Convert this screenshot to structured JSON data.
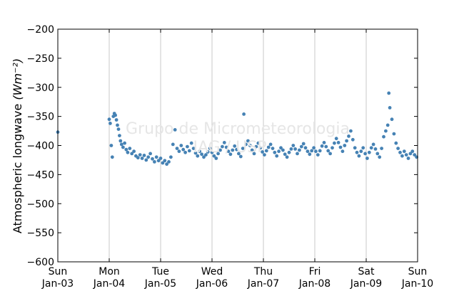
{
  "chart_data": {
    "type": "scatter",
    "title": "",
    "ylabel": "Atmospheric longwave",
    "ylabel_units": "(Wm⁻²)",
    "xlabel": "",
    "ylim": [
      -600,
      -200
    ],
    "xlim": [
      0,
      7
    ],
    "grid": "vertical",
    "yticks": [
      -200,
      -250,
      -300,
      -350,
      -400,
      -450,
      -500,
      -550,
      -600
    ],
    "xticks": [
      {
        "x": 0,
        "day": "Sun",
        "date": "Jan-03"
      },
      {
        "x": 1,
        "day": "Mon",
        "date": "Jan-04"
      },
      {
        "x": 2,
        "day": "Tue",
        "date": "Jan-05"
      },
      {
        "x": 3,
        "day": "Wed",
        "date": "Jan-06"
      },
      {
        "x": 4,
        "day": "Thu",
        "date": "Jan-07"
      },
      {
        "x": 5,
        "day": "Fri",
        "date": "Jan-08"
      },
      {
        "x": 6,
        "day": "Sat",
        "date": "Jan-09"
      },
      {
        "x": 7,
        "day": "Sun",
        "date": "Jan-10"
      }
    ],
    "color": "#4682b4",
    "points": [
      [
        0.0,
        -377
      ],
      [
        1.0,
        -355
      ],
      [
        1.02,
        -362
      ],
      [
        1.04,
        -400
      ],
      [
        1.06,
        -420
      ],
      [
        1.08,
        -350
      ],
      [
        1.1,
        -345
      ],
      [
        1.12,
        -348
      ],
      [
        1.14,
        -356
      ],
      [
        1.16,
        -365
      ],
      [
        1.18,
        -372
      ],
      [
        1.2,
        -383
      ],
      [
        1.22,
        -392
      ],
      [
        1.24,
        -398
      ],
      [
        1.27,
        -403
      ],
      [
        1.3,
        -396
      ],
      [
        1.33,
        -407
      ],
      [
        1.36,
        -412
      ],
      [
        1.4,
        -405
      ],
      [
        1.44,
        -414
      ],
      [
        1.48,
        -410
      ],
      [
        1.52,
        -418
      ],
      [
        1.56,
        -421
      ],
      [
        1.6,
        -416
      ],
      [
        1.64,
        -422
      ],
      [
        1.68,
        -417
      ],
      [
        1.72,
        -425
      ],
      [
        1.76,
        -420
      ],
      [
        1.8,
        -414
      ],
      [
        1.84,
        -423
      ],
      [
        1.88,
        -428
      ],
      [
        1.92,
        -420
      ],
      [
        1.96,
        -426
      ],
      [
        2.0,
        -422
      ],
      [
        2.04,
        -430
      ],
      [
        2.08,
        -426
      ],
      [
        2.12,
        -432
      ],
      [
        2.16,
        -428
      ],
      [
        2.2,
        -420
      ],
      [
        2.24,
        -398
      ],
      [
        2.28,
        -373
      ],
      [
        2.32,
        -405
      ],
      [
        2.36,
        -410
      ],
      [
        2.4,
        -400
      ],
      [
        2.44,
        -407
      ],
      [
        2.48,
        -412
      ],
      [
        2.52,
        -402
      ],
      [
        2.56,
        -409
      ],
      [
        2.6,
        -396
      ],
      [
        2.64,
        -405
      ],
      [
        2.68,
        -413
      ],
      [
        2.72,
        -418
      ],
      [
        2.76,
        -410
      ],
      [
        2.8,
        -415
      ],
      [
        2.84,
        -420
      ],
      [
        2.88,
        -416
      ],
      [
        2.92,
        -411
      ],
      [
        2.96,
        -405
      ],
      [
        3.0,
        -412
      ],
      [
        3.04,
        -418
      ],
      [
        3.08,
        -422
      ],
      [
        3.12,
        -414
      ],
      [
        3.16,
        -408
      ],
      [
        3.2,
        -402
      ],
      [
        3.24,
        -395
      ],
      [
        3.28,
        -403
      ],
      [
        3.32,
        -410
      ],
      [
        3.36,
        -415
      ],
      [
        3.4,
        -408
      ],
      [
        3.44,
        -401
      ],
      [
        3.48,
        -407
      ],
      [
        3.52,
        -414
      ],
      [
        3.56,
        -419
      ],
      [
        3.6,
        -405
      ],
      [
        3.62,
        -346
      ],
      [
        3.66,
        -398
      ],
      [
        3.7,
        -392
      ],
      [
        3.74,
        -400
      ],
      [
        3.78,
        -408
      ],
      [
        3.82,
        -414
      ],
      [
        3.86,
        -402
      ],
      [
        3.9,
        -396
      ],
      [
        3.94,
        -404
      ],
      [
        3.98,
        -411
      ],
      [
        4.02,
        -416
      ],
      [
        4.06,
        -409
      ],
      [
        4.1,
        -403
      ],
      [
        4.14,
        -398
      ],
      [
        4.18,
        -405
      ],
      [
        4.22,
        -412
      ],
      [
        4.26,
        -418
      ],
      [
        4.3,
        -410
      ],
      [
        4.34,
        -404
      ],
      [
        4.38,
        -408
      ],
      [
        4.42,
        -415
      ],
      [
        4.46,
        -420
      ],
      [
        4.5,
        -412
      ],
      [
        4.54,
        -406
      ],
      [
        4.58,
        -400
      ],
      [
        4.62,
        -406
      ],
      [
        4.66,
        -414
      ],
      [
        4.7,
        -408
      ],
      [
        4.74,
        -402
      ],
      [
        4.78,
        -397
      ],
      [
        4.82,
        -404
      ],
      [
        4.86,
        -410
      ],
      [
        4.9,
        -415
      ],
      [
        4.94,
        -409
      ],
      [
        4.98,
        -404
      ],
      [
        5.02,
        -410
      ],
      [
        5.06,
        -416
      ],
      [
        5.1,
        -409
      ],
      [
        5.14,
        -401
      ],
      [
        5.18,
        -395
      ],
      [
        5.22,
        -402
      ],
      [
        5.26,
        -409
      ],
      [
        5.3,
        -414
      ],
      [
        5.34,
        -404
      ],
      [
        5.38,
        -396
      ],
      [
        5.42,
        -388
      ],
      [
        5.46,
        -395
      ],
      [
        5.5,
        -403
      ],
      [
        5.54,
        -410
      ],
      [
        5.58,
        -400
      ],
      [
        5.62,
        -392
      ],
      [
        5.66,
        -384
      ],
      [
        5.7,
        -375
      ],
      [
        5.74,
        -390
      ],
      [
        5.78,
        -404
      ],
      [
        5.82,
        -412
      ],
      [
        5.86,
        -418
      ],
      [
        5.9,
        -410
      ],
      [
        5.94,
        -404
      ],
      [
        5.98,
        -414
      ],
      [
        6.02,
        -422
      ],
      [
        6.06,
        -412
      ],
      [
        6.1,
        -404
      ],
      [
        6.14,
        -398
      ],
      [
        6.18,
        -406
      ],
      [
        6.22,
        -414
      ],
      [
        6.26,
        -420
      ],
      [
        6.3,
        -405
      ],
      [
        6.34,
        -385
      ],
      [
        6.38,
        -375
      ],
      [
        6.42,
        -365
      ],
      [
        6.44,
        -310
      ],
      [
        6.46,
        -335
      ],
      [
        6.5,
        -355
      ],
      [
        6.54,
        -380
      ],
      [
        6.58,
        -396
      ],
      [
        6.62,
        -405
      ],
      [
        6.66,
        -412
      ],
      [
        6.7,
        -418
      ],
      [
        6.74,
        -410
      ],
      [
        6.78,
        -416
      ],
      [
        6.82,
        -422
      ],
      [
        6.86,
        -414
      ],
      [
        6.9,
        -410
      ],
      [
        6.94,
        -416
      ],
      [
        6.98,
        -420
      ]
    ]
  },
  "watermark": {
    "line1": "Grupo de Micrometeorologia",
    "line2": "IAG / USP"
  }
}
